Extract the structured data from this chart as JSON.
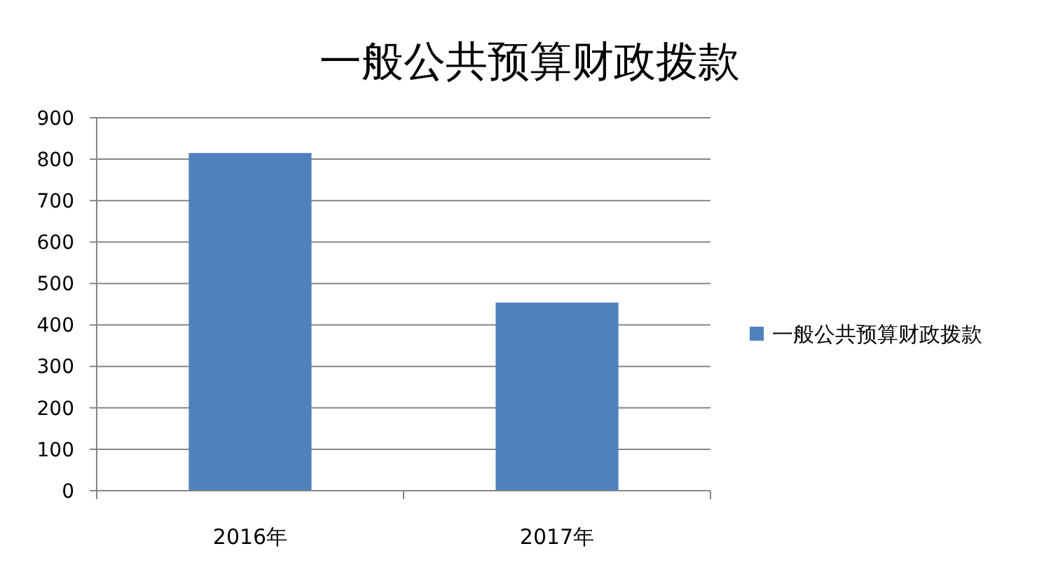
{
  "chart_data": {
    "type": "bar",
    "title": "一般公共预算财政拨款",
    "categories": [
      "2016年",
      "2017年"
    ],
    "series": [
      {
        "name": "一般公共预算财政拨款",
        "color": "#4f81bd",
        "values": [
          815,
          454
        ]
      }
    ],
    "ylim": [
      0,
      900
    ],
    "yticks": [
      0,
      100,
      200,
      300,
      400,
      500,
      600,
      700,
      800,
      900
    ],
    "grid": "y",
    "legend": "right"
  }
}
